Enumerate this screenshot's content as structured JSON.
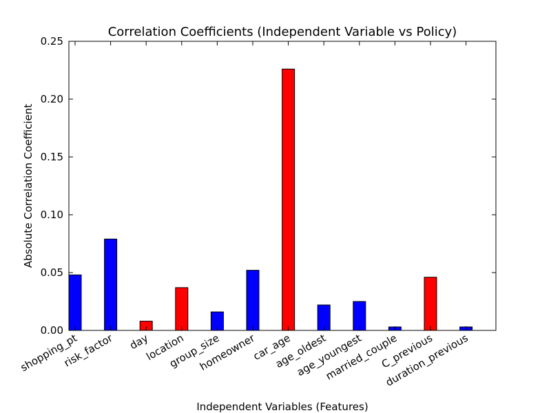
{
  "chart_data": {
    "type": "bar",
    "title": "Correlation Coefficients (Independent Variable vs Policy)",
    "xlabel": "Independent Variables (Features)",
    "ylabel": "Absolute Correlation Coefficient",
    "ylim": [
      0,
      0.25
    ],
    "yticks": [
      "0.00",
      "0.05",
      "0.10",
      "0.15",
      "0.20",
      "0.25"
    ],
    "grid": false,
    "categories": [
      "shopping_pt",
      "risk_factor",
      "day",
      "location",
      "group_size",
      "homeowner",
      "car_age",
      "age_oldest",
      "age_youngest",
      "married_couple",
      "C_previous",
      "duration_previous"
    ],
    "values": [
      0.048,
      0.079,
      0.008,
      0.037,
      0.016,
      0.052,
      0.226,
      0.022,
      0.025,
      0.003,
      0.046,
      0.003
    ],
    "bar_colors": [
      "#0000ff",
      "#0000ff",
      "#ff0000",
      "#ff0000",
      "#0000ff",
      "#0000ff",
      "#ff0000",
      "#0000ff",
      "#0000ff",
      "#0000ff",
      "#ff0000",
      "#0000ff"
    ]
  }
}
